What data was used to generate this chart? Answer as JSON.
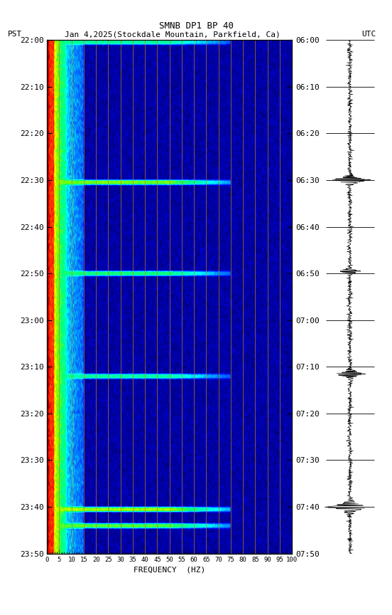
{
  "title_line1": "SMNB DP1 BP 40",
  "title_line2_left": "PST",
  "title_line2_mid": "Jan 4,2025(Stockdale Mountain, Parkfield, Ca)",
  "title_line2_right": "UTC",
  "xlabel": "FREQUENCY  (HZ)",
  "freq_min": 0,
  "freq_max": 100,
  "pst_labels": [
    "22:00",
    "22:10",
    "22:20",
    "22:30",
    "22:40",
    "22:50",
    "23:00",
    "23:10",
    "23:20",
    "23:30",
    "23:40",
    "23:50"
  ],
  "utc_labels": [
    "06:00",
    "06:10",
    "06:20",
    "06:30",
    "06:40",
    "06:50",
    "07:00",
    "07:10",
    "07:20",
    "07:30",
    "07:40",
    "07:50"
  ],
  "freq_ticks": [
    0,
    5,
    10,
    15,
    20,
    25,
    30,
    35,
    40,
    45,
    50,
    55,
    60,
    65,
    70,
    75,
    80,
    85,
    90,
    95,
    100
  ],
  "vert_lines_freq": [
    5,
    10,
    15,
    20,
    25,
    30,
    35,
    40,
    45,
    50,
    55,
    60,
    65,
    70,
    75,
    80,
    85,
    90,
    95
  ],
  "fig_bg": "#ffffff",
  "n_time": 220,
  "n_freq": 400,
  "noise_seed": 42
}
